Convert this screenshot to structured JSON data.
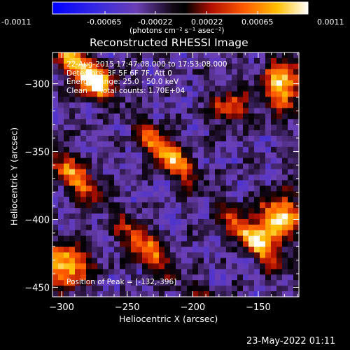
{
  "colorbar": {
    "ticks": [
      "-0.0011",
      "-0.00065",
      "-0.00022",
      "0.00022",
      "0.00065",
      "0.0011"
    ],
    "units": "(photons cm⁻² s⁻¹ asec⁻²)",
    "range": [
      -0.0011,
      0.0011
    ]
  },
  "image_info": {
    "time_range": "22-Aug-2015 17:47:08.000 to 17:53:08.000",
    "detectors": "Detectors: 3F 5F 6F 7F, Att 0",
    "energy_range": "Energy Range: 25.0 - 50.0 keV",
    "algorithm": "Clean",
    "total_counts": "Total counts: 1.70E+04",
    "peak_position": "Position of Peak = [-132,-396]"
  },
  "footer": {
    "timestamp": "23-May-2022 01:11"
  },
  "chart_data": {
    "type": "heatmap",
    "title": "Reconstructed RHESSI Image",
    "xlabel": "Heliocentric X (arcsec)",
    "ylabel": "Heliocentric Y (arcsec)",
    "xlim": [
      -307,
      -119
    ],
    "ylim": [
      -457,
      -277
    ],
    "x_ticks": [
      {
        "value": -300,
        "label": "−300"
      },
      {
        "value": -250,
        "label": "−250"
      },
      {
        "value": -200,
        "label": "−200"
      },
      {
        "value": -150,
        "label": "−150"
      }
    ],
    "y_ticks": [
      {
        "value": -300,
        "label": "−300"
      },
      {
        "value": -350,
        "label": "−350"
      },
      {
        "value": -400,
        "label": "−400"
      },
      {
        "value": -450,
        "label": "−450"
      }
    ],
    "peak": {
      "x": -132,
      "y": -396
    },
    "colormap": [
      "#0000ff",
      "#4030c0",
      "#6a3fb0",
      "#000000",
      "#cc1100",
      "#ff6600",
      "#ffcc00",
      "#ffffff"
    ]
  }
}
